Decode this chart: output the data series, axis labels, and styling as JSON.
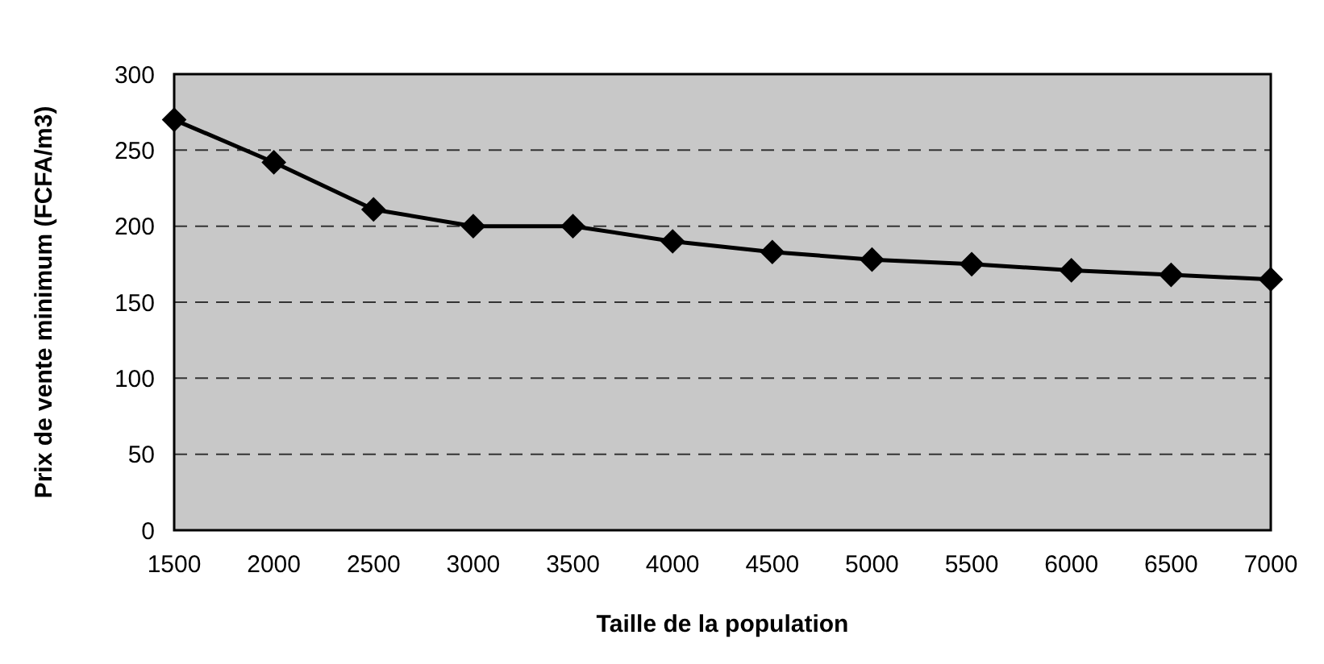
{
  "chart_data": {
    "type": "line",
    "xlabel": "Taille de la population",
    "ylabel": "Prix de vente minimum (FCFA/m3)",
    "x": [
      1500,
      2000,
      2500,
      3000,
      3500,
      4000,
      4500,
      5000,
      5500,
      6000,
      6500,
      7000
    ],
    "series": [
      {
        "color": "#000000",
        "values": [
          270,
          242,
          211,
          200,
          200,
          190,
          183,
          178,
          175,
          171,
          168,
          165
        ]
      }
    ],
    "xlim": [
      1500,
      7000
    ],
    "xticks": [
      1500,
      2000,
      2500,
      3000,
      3500,
      4000,
      4500,
      5000,
      5500,
      6000,
      6500,
      7000
    ],
    "ylim": [
      0,
      300
    ],
    "yticks": [
      0,
      50,
      100,
      150,
      200,
      250,
      300
    ],
    "grid": "y",
    "marker": "diamond",
    "line_style": "solid"
  }
}
